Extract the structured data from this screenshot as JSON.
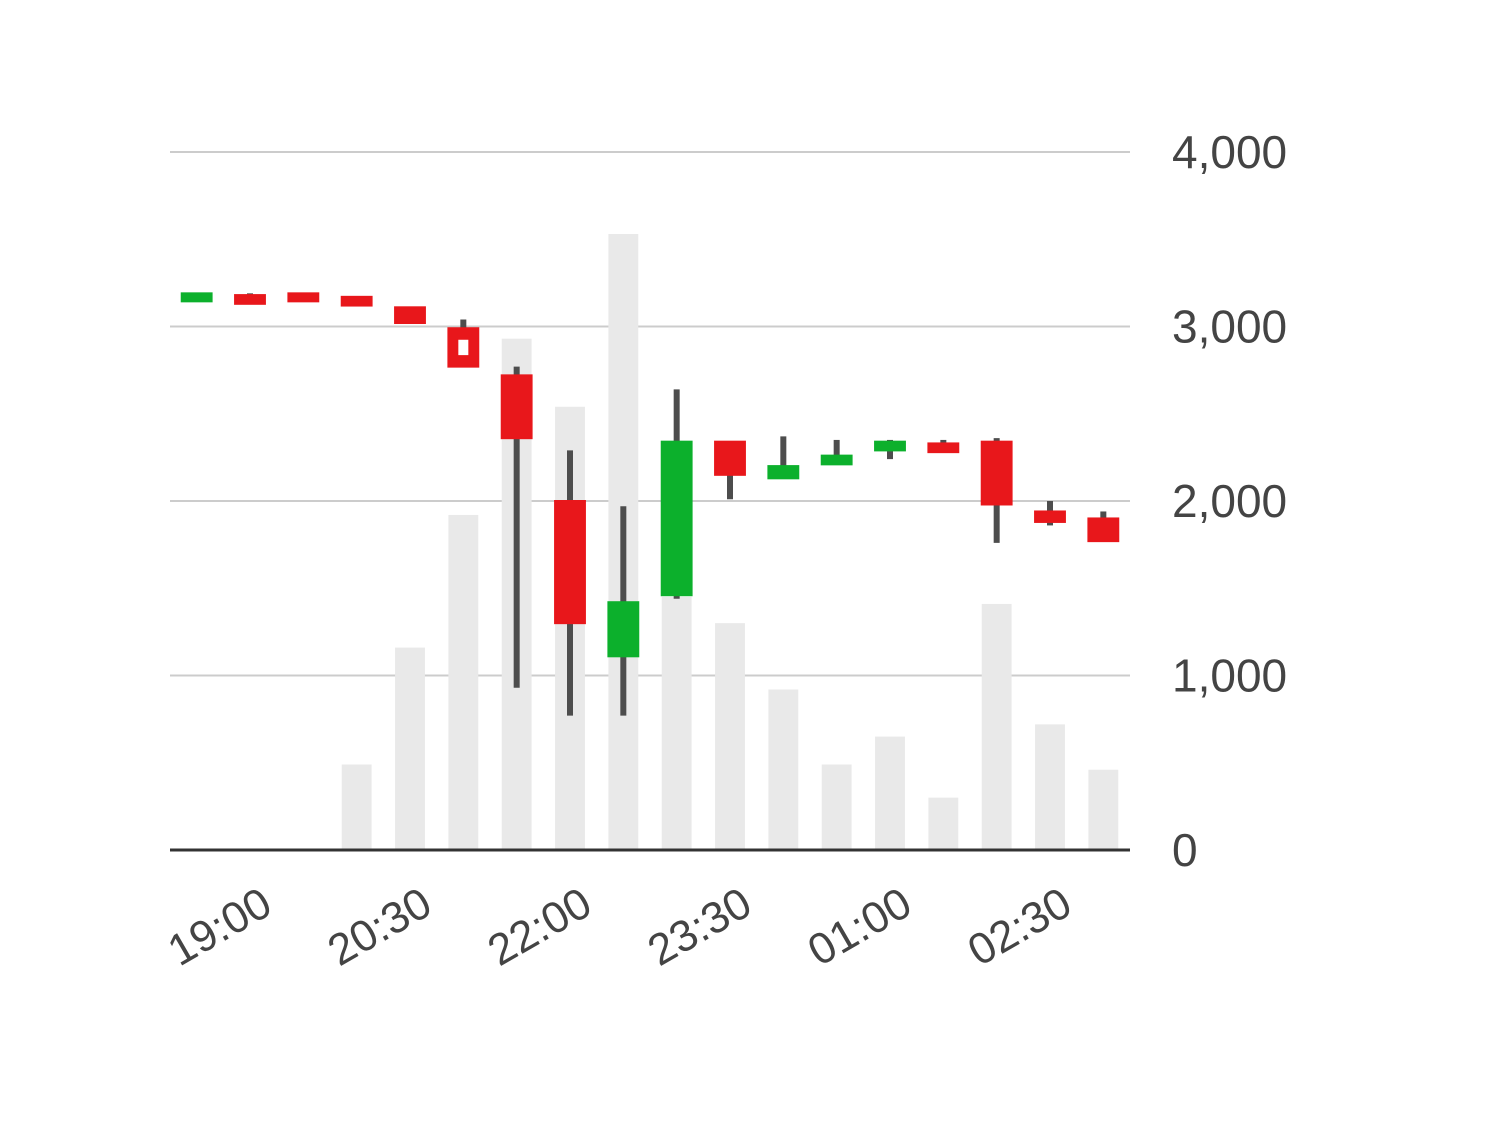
{
  "chart_data": {
    "type": "candlestick",
    "title": "",
    "xlabel": "",
    "ylabel": "",
    "ylim": [
      0,
      4000
    ],
    "y_ticks": [
      "0",
      "1,000",
      "2,000",
      "3,000",
      "4,000"
    ],
    "y_tick_values": [
      0,
      1000,
      2000,
      3000,
      4000
    ],
    "x_tick_labels": [
      "19:00",
      "20:30",
      "22:00",
      "23:30",
      "01:00",
      "02:30"
    ],
    "x_tick_index": [
      0,
      3,
      6,
      9,
      12,
      15
    ],
    "grid": true,
    "colors": {
      "up": "#0cb02c",
      "down": "#e8171b",
      "wick": "#4d4d4d",
      "volume": "#e9e9e9",
      "grid": "#cccccc",
      "axis": "#333333"
    },
    "candles": [
      {
        "open": 3150,
        "close": 3190,
        "high": 3190,
        "low": 3150
      },
      {
        "open": 3180,
        "close": 3130,
        "high": 3190,
        "low": 3130
      },
      {
        "open": 3190,
        "close": 3150,
        "high": 3190,
        "low": 3150
      },
      {
        "open": 3170,
        "close": 3120,
        "high": 3170,
        "low": 3120
      },
      {
        "open": 3110,
        "close": 3020,
        "high": 3110,
        "low": 3020
      },
      {
        "open": 2990,
        "close": 2770,
        "high": 3040,
        "low": 2770,
        "hollow": true
      },
      {
        "open": 2720,
        "close": 2360,
        "high": 2770,
        "low": 930
      },
      {
        "open": 2000,
        "close": 1300,
        "high": 2290,
        "low": 770
      },
      {
        "open": 1110,
        "close": 1420,
        "high": 1970,
        "low": 770
      },
      {
        "open": 1460,
        "close": 2340,
        "high": 2640,
        "low": 1440
      },
      {
        "open": 2340,
        "close": 2150,
        "high": 2340,
        "low": 2010
      },
      {
        "open": 2130,
        "close": 2200,
        "high": 2370,
        "low": 2130
      },
      {
        "open": 2210,
        "close": 2260,
        "high": 2350,
        "low": 2210
      },
      {
        "open": 2290,
        "close": 2340,
        "high": 2350,
        "low": 2240
      },
      {
        "open": 2330,
        "close": 2280,
        "high": 2350,
        "low": 2280
      },
      {
        "open": 2340,
        "close": 1980,
        "high": 2360,
        "low": 1760
      },
      {
        "open": 1940,
        "close": 1880,
        "high": 2000,
        "low": 1860
      },
      {
        "open": 1900,
        "close": 1770,
        "high": 1940,
        "low": 1770
      }
    ],
    "volume": [
      0,
      0,
      0,
      490,
      1160,
      1920,
      2930,
      2540,
      3530,
      1450,
      1300,
      920,
      490,
      650,
      300,
      1410,
      720,
      460
    ]
  }
}
